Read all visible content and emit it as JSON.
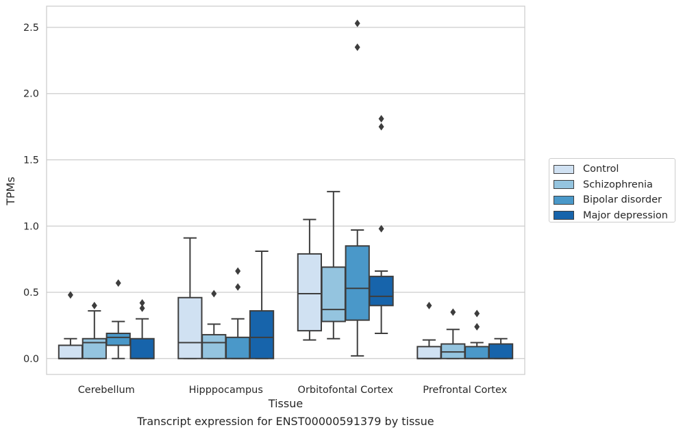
{
  "chart_data": {
    "type": "box",
    "xlabel": "Tissue",
    "ylabel": "TPMs",
    "ylim": [
      -0.12,
      2.66
    ],
    "yticks": [
      0.0,
      0.5,
      1.0,
      1.5,
      2.0,
      2.5
    ],
    "ytick_labels": [
      "0.0",
      "0.5",
      "1.0",
      "1.5",
      "2.0",
      "2.5"
    ],
    "grid": true,
    "legend_position": "right",
    "categories": [
      "Cerebellum",
      "Hipppocampus",
      "Orbitofontal Cortex",
      "Prefrontal Cortex"
    ],
    "series": [
      {
        "name": "Control",
        "color": "#d0e1f2",
        "boxes": [
          {
            "whislo": 0.0,
            "q1": 0.0,
            "med": 0.0,
            "q3": 0.1,
            "whishi": 0.15,
            "fliers": [
              0.48
            ]
          },
          {
            "whislo": 0.0,
            "q1": 0.0,
            "med": 0.12,
            "q3": 0.46,
            "whishi": 0.91,
            "fliers": []
          },
          {
            "whislo": 0.14,
            "q1": 0.21,
            "med": 0.49,
            "q3": 0.79,
            "whishi": 1.05,
            "fliers": []
          },
          {
            "whislo": 0.0,
            "q1": 0.0,
            "med": 0.0,
            "q3": 0.09,
            "whishi": 0.14,
            "fliers": [
              0.4
            ]
          }
        ]
      },
      {
        "name": "Schizophrenia",
        "color": "#94c4df",
        "boxes": [
          {
            "whislo": 0.0,
            "q1": 0.0,
            "med": 0.12,
            "q3": 0.15,
            "whishi": 0.36,
            "fliers": [
              0.4
            ]
          },
          {
            "whislo": 0.0,
            "q1": 0.0,
            "med": 0.12,
            "q3": 0.18,
            "whishi": 0.26,
            "fliers": [
              0.49
            ]
          },
          {
            "whislo": 0.15,
            "q1": 0.28,
            "med": 0.37,
            "q3": 0.69,
            "whishi": 1.26,
            "fliers": []
          },
          {
            "whislo": 0.0,
            "q1": 0.0,
            "med": 0.05,
            "q3": 0.11,
            "whishi": 0.22,
            "fliers": [
              0.35
            ]
          }
        ]
      },
      {
        "name": "Bipolar disorder",
        "color": "#4a98c9",
        "boxes": [
          {
            "whislo": 0.0,
            "q1": 0.1,
            "med": 0.16,
            "q3": 0.19,
            "whishi": 0.28,
            "fliers": [
              0.57
            ]
          },
          {
            "whislo": 0.0,
            "q1": 0.0,
            "med": 0.0,
            "q3": 0.16,
            "whishi": 0.3,
            "fliers": [
              0.54,
              0.66
            ]
          },
          {
            "whislo": 0.02,
            "q1": 0.29,
            "med": 0.53,
            "q3": 0.85,
            "whishi": 0.97,
            "fliers": [
              2.35,
              2.53
            ]
          },
          {
            "whislo": 0.0,
            "q1": 0.0,
            "med": 0.0,
            "q3": 0.09,
            "whishi": 0.12,
            "fliers": [
              0.24,
              0.34
            ]
          }
        ]
      },
      {
        "name": "Major depression",
        "color": "#1764ab",
        "boxes": [
          {
            "whislo": 0.0,
            "q1": 0.0,
            "med": 0.0,
            "q3": 0.15,
            "whishi": 0.3,
            "fliers": [
              0.38,
              0.42
            ]
          },
          {
            "whislo": 0.0,
            "q1": 0.0,
            "med": 0.16,
            "q3": 0.36,
            "whishi": 0.81,
            "fliers": []
          },
          {
            "whislo": 0.19,
            "q1": 0.4,
            "med": 0.47,
            "q3": 0.62,
            "whishi": 0.66,
            "fliers": [
              0.98,
              1.75,
              1.81
            ]
          },
          {
            "whislo": 0.0,
            "q1": 0.0,
            "med": 0.0,
            "q3": 0.11,
            "whishi": 0.15,
            "fliers": []
          }
        ]
      }
    ]
  },
  "caption": "Transcript expression for ENST00000591379 by tissue"
}
